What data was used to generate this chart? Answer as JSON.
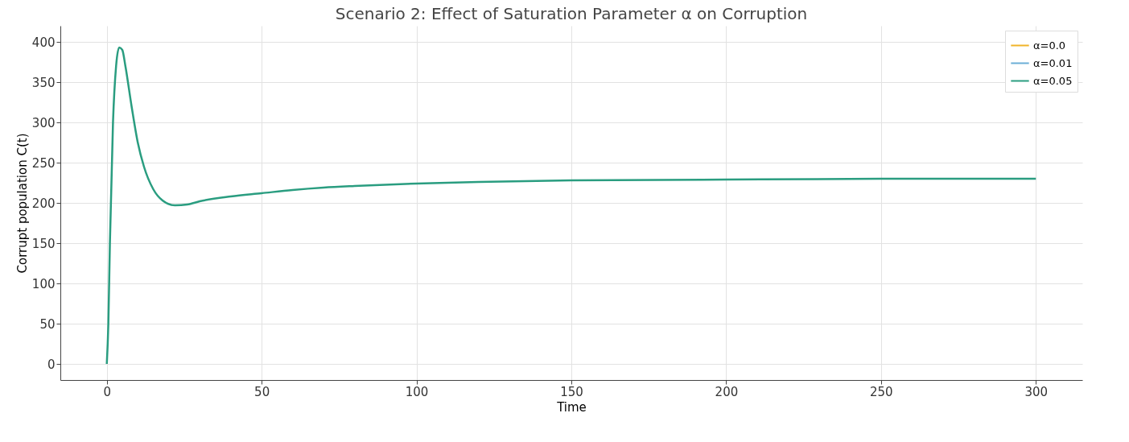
{
  "chart_data": {
    "type": "line",
    "title": "Scenario 2: Effect of Saturation Parameter α on Corruption",
    "xlabel": "Time",
    "ylabel": "Corrupt population C(t)",
    "x": [
      0,
      0.5,
      1,
      2,
      3,
      4,
      5,
      6,
      8,
      10,
      12,
      15,
      18,
      22,
      26,
      30,
      40,
      50,
      60,
      70,
      80,
      100,
      120,
      150,
      200,
      250,
      300
    ],
    "series": [
      {
        "name": "α=0.0",
        "color": "#f0b429",
        "values": [
          null,
          null,
          null,
          null,
          null,
          null,
          null,
          null,
          null,
          null,
          null,
          null,
          null,
          null,
          null,
          null,
          null,
          null,
          null,
          null,
          null,
          null,
          null,
          null,
          null,
          null,
          null
        ]
      },
      {
        "name": "α=0.01",
        "color": "#6baed6",
        "values": [
          null,
          null,
          null,
          null,
          null,
          null,
          null,
          null,
          null,
          null,
          null,
          null,
          null,
          null,
          null,
          null,
          null,
          null,
          null,
          null,
          null,
          null,
          null,
          null,
          null,
          null,
          null
        ]
      },
      {
        "name": "α=0.05",
        "color": "#2a9d80",
        "values": [
          0,
          50,
          150,
          300,
          370,
          393,
          390,
          370,
          320,
          275,
          245,
          217,
          203,
          197,
          198,
          202,
          208,
          212,
          216,
          219,
          221,
          224,
          226,
          228,
          229,
          230,
          230
        ]
      }
    ],
    "xlim": [
      -15,
      315
    ],
    "xticks": [
      0,
      50,
      100,
      150,
      200,
      250,
      300
    ],
    "ylim": [
      -20,
      420
    ],
    "yticks": [
      0,
      50,
      100,
      150,
      200,
      250,
      300,
      350,
      400
    ],
    "grid": true,
    "legend": "top right",
    "line_style": "solid"
  }
}
